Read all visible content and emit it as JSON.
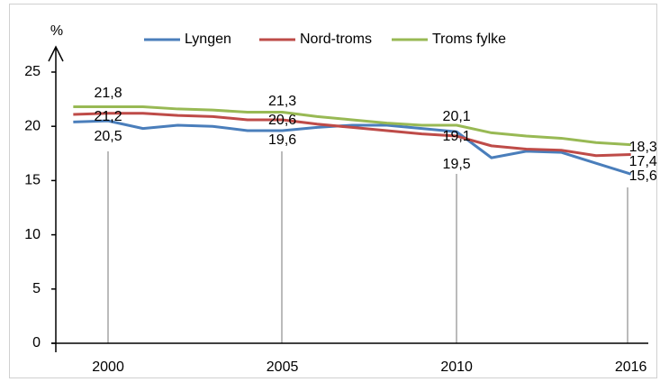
{
  "chart_data": {
    "type": "line",
    "y_label": "%",
    "categories": [
      null,
      "2000",
      null,
      null,
      null,
      null,
      "2005",
      null,
      null,
      null,
      null,
      "2010",
      null,
      null,
      null,
      null,
      "2016"
    ],
    "ylim": [
      0,
      25
    ],
    "yticks": [
      0,
      5,
      10,
      15,
      20,
      25
    ],
    "legend": "top",
    "series": [
      {
        "name": "Lyngen",
        "color": "#4a7ebb",
        "values": [
          20.4,
          20.5,
          19.8,
          20.1,
          20.0,
          19.6,
          19.6,
          19.9,
          20.1,
          20.1,
          19.8,
          19.5,
          17.1,
          17.7,
          17.6,
          16.6,
          15.6
        ],
        "value_labels": [
          null,
          "20,5",
          null,
          null,
          null,
          null,
          "19,6",
          null,
          null,
          null,
          null,
          "19,5",
          null,
          null,
          null,
          null,
          "15,6"
        ]
      },
      {
        "name": "Nord-troms",
        "color": "#be4b48",
        "values": [
          21.1,
          21.2,
          21.2,
          21.0,
          20.9,
          20.6,
          20.6,
          20.2,
          19.9,
          19.6,
          19.3,
          19.1,
          18.2,
          17.9,
          17.8,
          17.3,
          17.4
        ],
        "value_labels": [
          null,
          "21,2",
          null,
          null,
          null,
          null,
          "20,6",
          null,
          null,
          null,
          null,
          "19,1",
          null,
          null,
          null,
          null,
          "17,4"
        ]
      },
      {
        "name": "Troms fylke",
        "color": "#98b954",
        "values": [
          21.8,
          21.8,
          21.8,
          21.6,
          21.5,
          21.3,
          21.3,
          20.9,
          20.6,
          20.3,
          20.1,
          20.1,
          19.4,
          19.1,
          18.9,
          18.5,
          18.3
        ],
        "value_labels": [
          null,
          "21,8",
          null,
          null,
          null,
          null,
          "21,3",
          null,
          null,
          null,
          null,
          "20,1",
          null,
          null,
          null,
          null,
          "18,3"
        ]
      }
    ]
  }
}
